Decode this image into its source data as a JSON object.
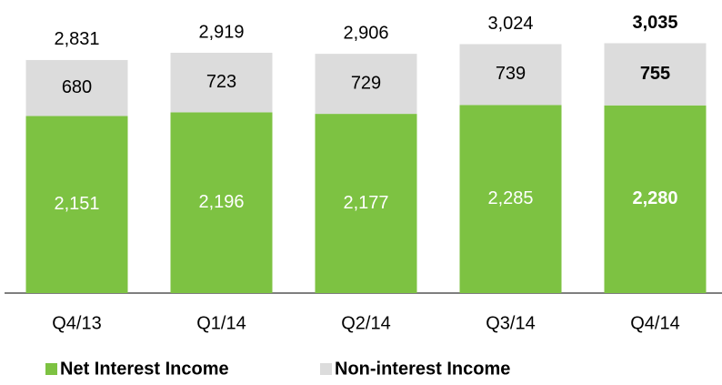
{
  "chart_data": {
    "type": "stacked_bar",
    "categories": [
      "Q4/13",
      "Q1/14",
      "Q2/14",
      "Q3/14",
      "Q4/14"
    ],
    "series": [
      {
        "name": "Net Interest Income",
        "color": "#7dc242",
        "label_color": "#ffffff",
        "values": [
          2151,
          2196,
          2177,
          2285,
          2280
        ],
        "value_labels": [
          "2,151",
          "2,196",
          "2,177",
          "2,285",
          "2,280"
        ]
      },
      {
        "name": "Non-interest Income",
        "color": "#dcdcdc",
        "label_color": "#000000",
        "values": [
          680,
          723,
          729,
          739,
          755
        ],
        "value_labels": [
          "680",
          "723",
          "729",
          "739",
          "755"
        ]
      }
    ],
    "totals": [
      2831,
      2919,
      2906,
      3024,
      3035
    ],
    "total_labels": [
      "2,831",
      "2,919",
      "2,906",
      "3,024",
      "3,035"
    ],
    "highlight_index": 4,
    "ylim": [
      0,
      3560
    ]
  }
}
